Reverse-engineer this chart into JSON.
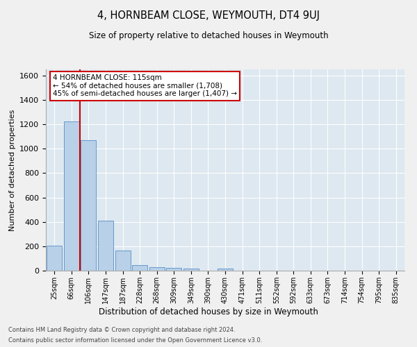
{
  "title": "4, HORNBEAM CLOSE, WEYMOUTH, DT4 9UJ",
  "subtitle": "Size of property relative to detached houses in Weymouth",
  "xlabel": "Distribution of detached houses by size in Weymouth",
  "ylabel": "Number of detached properties",
  "categories": [
    "25sqm",
    "66sqm",
    "106sqm",
    "147sqm",
    "187sqm",
    "228sqm",
    "268sqm",
    "309sqm",
    "349sqm",
    "390sqm",
    "430sqm",
    "471sqm",
    "511sqm",
    "552sqm",
    "592sqm",
    "633sqm",
    "673sqm",
    "714sqm",
    "754sqm",
    "795sqm",
    "835sqm"
  ],
  "values": [
    205,
    1225,
    1070,
    410,
    165,
    48,
    26,
    22,
    15,
    0,
    15,
    0,
    0,
    0,
    0,
    0,
    0,
    0,
    0,
    0,
    0
  ],
  "bar_color": "#b8d0e8",
  "bar_edge_color": "#6699cc",
  "red_line_x": 1.5,
  "red_line_color": "#cc0000",
  "annotation_text": "4 HORNBEAM CLOSE: 115sqm\n← 54% of detached houses are smaller (1,708)\n45% of semi-detached houses are larger (1,407) →",
  "annotation_box_color": "#ffffff",
  "annotation_box_edge": "#cc0000",
  "ylim": [
    0,
    1650
  ],
  "yticks": [
    0,
    200,
    400,
    600,
    800,
    1000,
    1200,
    1400,
    1600
  ],
  "background_color": "#dde8f0",
  "fig_background": "#f0f0f0",
  "footer_line1": "Contains HM Land Registry data © Crown copyright and database right 2024.",
  "footer_line2": "Contains public sector information licensed under the Open Government Licence v3.0."
}
